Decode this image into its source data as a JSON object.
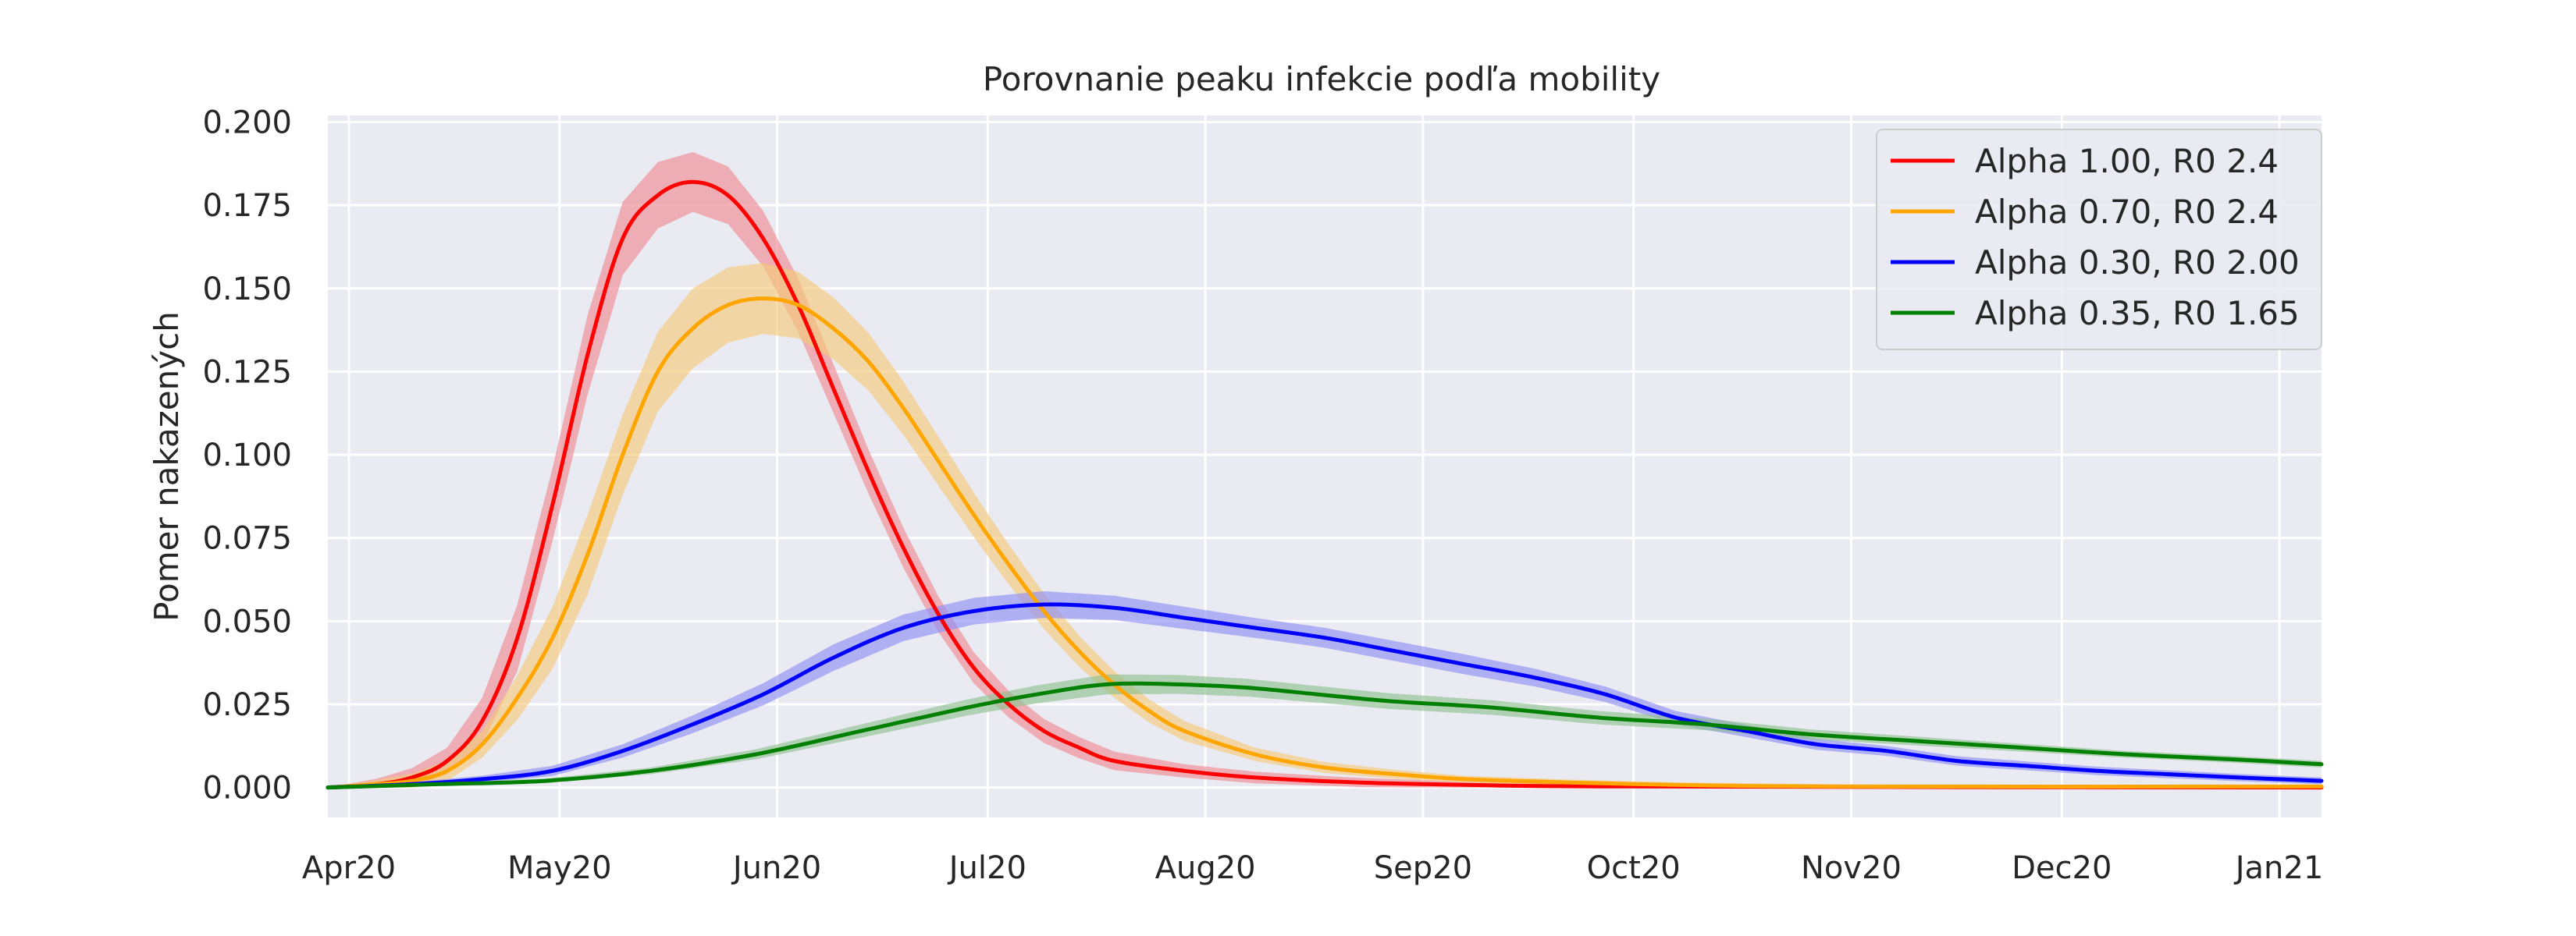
{
  "chart_data": {
    "type": "line",
    "title": "Porovnanie peaku infekcie podľa mobility",
    "xlabel": "",
    "ylabel": "Pomer nakazených",
    "x_type": "date",
    "xlim": [
      "2020-03-29",
      "2021-01-07"
    ],
    "ylim": [
      -0.009,
      0.202
    ],
    "yticks": [
      0.0,
      0.025,
      0.05,
      0.075,
      0.1,
      0.125,
      0.15,
      0.175,
      0.2
    ],
    "ytick_labels": [
      "0.000",
      "0.025",
      "0.050",
      "0.075",
      "0.100",
      "0.125",
      "0.150",
      "0.175",
      "0.200"
    ],
    "xticks": [
      "2020-04-01",
      "2020-05-01",
      "2020-06-01",
      "2020-07-01",
      "2020-08-01",
      "2020-09-01",
      "2020-10-01",
      "2020-11-01",
      "2020-12-01",
      "2021-01-01"
    ],
    "xtick_labels": [
      "Apr20",
      "May20",
      "Jun20",
      "Jul20",
      "Aug20",
      "Sep20",
      "Oct20",
      "Nov20",
      "Dec20",
      "Jan21"
    ],
    "grid": true,
    "legend_position": "top-right",
    "series": [
      {
        "name": "Alpha 1.00, R0 2.4",
        "color": "#ff0000",
        "band_color": "#f08a93",
        "points": [
          [
            "2020-03-29",
            0.0
          ],
          [
            "2020-04-05",
            0.001
          ],
          [
            "2020-04-10",
            0.003
          ],
          [
            "2020-04-15",
            0.008
          ],
          [
            "2020-04-20",
            0.02
          ],
          [
            "2020-04-25",
            0.045
          ],
          [
            "2020-04-30",
            0.085
          ],
          [
            "2020-05-05",
            0.13
          ],
          [
            "2020-05-10",
            0.165
          ],
          [
            "2020-05-15",
            0.178
          ],
          [
            "2020-05-20",
            0.182
          ],
          [
            "2020-05-25",
            0.178
          ],
          [
            "2020-05-30",
            0.165
          ],
          [
            "2020-06-04",
            0.145
          ],
          [
            "2020-06-09",
            0.12
          ],
          [
            "2020-06-14",
            0.095
          ],
          [
            "2020-06-19",
            0.072
          ],
          [
            "2020-06-24",
            0.052
          ],
          [
            "2020-06-29",
            0.036
          ],
          [
            "2020-07-04",
            0.025
          ],
          [
            "2020-07-09",
            0.017
          ],
          [
            "2020-07-14",
            0.012
          ],
          [
            "2020-07-19",
            0.008
          ],
          [
            "2020-07-29",
            0.005
          ],
          [
            "2020-08-08",
            0.003
          ],
          [
            "2020-08-23",
            0.0015
          ],
          [
            "2020-09-07",
            0.0008
          ],
          [
            "2020-10-01",
            0.0003
          ],
          [
            "2021-01-07",
            0.0
          ]
        ],
        "band_width": [
          [
            "2020-03-29",
            0.0
          ],
          [
            "2020-04-15",
            0.004
          ],
          [
            "2020-04-25",
            0.01
          ],
          [
            "2020-05-05",
            0.012
          ],
          [
            "2020-05-20",
            0.009
          ],
          [
            "2020-06-04",
            0.008
          ],
          [
            "2020-06-19",
            0.006
          ],
          [
            "2020-07-04",
            0.004
          ],
          [
            "2020-07-29",
            0.002
          ],
          [
            "2020-09-07",
            0.001
          ],
          [
            "2021-01-07",
            0.0
          ]
        ]
      },
      {
        "name": "Alpha 0.70, R0 2.4",
        "color": "#ffa500",
        "band_color": "#f5c97a",
        "points": [
          [
            "2020-03-29",
            0.0
          ],
          [
            "2020-04-05",
            0.001
          ],
          [
            "2020-04-10",
            0.002
          ],
          [
            "2020-04-15",
            0.005
          ],
          [
            "2020-04-20",
            0.013
          ],
          [
            "2020-04-25",
            0.027
          ],
          [
            "2020-04-30",
            0.045
          ],
          [
            "2020-05-05",
            0.07
          ],
          [
            "2020-05-10",
            0.1
          ],
          [
            "2020-05-15",
            0.125
          ],
          [
            "2020-05-20",
            0.138
          ],
          [
            "2020-05-25",
            0.145
          ],
          [
            "2020-05-30",
            0.147
          ],
          [
            "2020-06-04",
            0.145
          ],
          [
            "2020-06-09",
            0.138
          ],
          [
            "2020-06-14",
            0.128
          ],
          [
            "2020-06-19",
            0.114
          ],
          [
            "2020-06-24",
            0.098
          ],
          [
            "2020-06-29",
            0.082
          ],
          [
            "2020-07-04",
            0.067
          ],
          [
            "2020-07-09",
            0.053
          ],
          [
            "2020-07-14",
            0.041
          ],
          [
            "2020-07-19",
            0.031
          ],
          [
            "2020-07-24",
            0.023
          ],
          [
            "2020-07-29",
            0.017
          ],
          [
            "2020-08-08",
            0.01
          ],
          [
            "2020-08-18",
            0.006
          ],
          [
            "2020-08-28",
            0.004
          ],
          [
            "2020-09-07",
            0.0025
          ],
          [
            "2020-09-22",
            0.0015
          ],
          [
            "2020-10-07",
            0.0008
          ],
          [
            "2020-11-01",
            0.0003
          ],
          [
            "2021-01-07",
            0.0003
          ]
        ],
        "band_width": [
          [
            "2020-03-29",
            0.0
          ],
          [
            "2020-04-20",
            0.004
          ],
          [
            "2020-05-05",
            0.012
          ],
          [
            "2020-05-20",
            0.012
          ],
          [
            "2020-06-04",
            0.01
          ],
          [
            "2020-06-19",
            0.008
          ],
          [
            "2020-07-04",
            0.006
          ],
          [
            "2020-07-19",
            0.004
          ],
          [
            "2020-08-08",
            0.002
          ],
          [
            "2020-09-07",
            0.001
          ],
          [
            "2021-01-07",
            0.0
          ]
        ]
      },
      {
        "name": "Alpha 0.30, R0 2.00",
        "color": "#0000ff",
        "band_color": "#8f8ff5",
        "points": [
          [
            "2020-03-29",
            0.0
          ],
          [
            "2020-04-10",
            0.001
          ],
          [
            "2020-04-20",
            0.0025
          ],
          [
            "2020-04-30",
            0.005
          ],
          [
            "2020-05-10",
            0.011
          ],
          [
            "2020-05-20",
            0.019
          ],
          [
            "2020-05-30",
            0.028
          ],
          [
            "2020-06-09",
            0.039
          ],
          [
            "2020-06-19",
            0.048
          ],
          [
            "2020-06-29",
            0.053
          ],
          [
            "2020-07-09",
            0.055
          ],
          [
            "2020-07-19",
            0.054
          ],
          [
            "2020-07-29",
            0.051
          ],
          [
            "2020-08-08",
            0.048
          ],
          [
            "2020-08-18",
            0.045
          ],
          [
            "2020-08-28",
            0.041
          ],
          [
            "2020-09-07",
            0.037
          ],
          [
            "2020-09-17",
            0.033
          ],
          [
            "2020-09-27",
            0.028
          ],
          [
            "2020-10-07",
            0.021
          ],
          [
            "2020-10-17",
            0.017
          ],
          [
            "2020-10-27",
            0.013
          ],
          [
            "2020-11-06",
            0.011
          ],
          [
            "2020-11-16",
            0.008
          ],
          [
            "2020-11-26",
            0.0065
          ],
          [
            "2020-12-06",
            0.005
          ],
          [
            "2020-12-16",
            0.004
          ],
          [
            "2020-12-26",
            0.003
          ],
          [
            "2021-01-07",
            0.002
          ]
        ],
        "band_width": [
          [
            "2020-03-29",
            0.0
          ],
          [
            "2020-05-10",
            0.002
          ],
          [
            "2020-06-09",
            0.004
          ],
          [
            "2020-07-09",
            0.004
          ],
          [
            "2020-08-08",
            0.003
          ],
          [
            "2020-09-07",
            0.003
          ],
          [
            "2020-10-07",
            0.002
          ],
          [
            "2020-11-06",
            0.0015
          ],
          [
            "2021-01-07",
            0.001
          ]
        ]
      },
      {
        "name": "Alpha 0.35, R0 1.65",
        "color": "#008000",
        "band_color": "#8fc28f",
        "points": [
          [
            "2020-03-29",
            0.0
          ],
          [
            "2020-04-14",
            0.001
          ],
          [
            "2020-04-29",
            0.002
          ],
          [
            "2020-05-14",
            0.005
          ],
          [
            "2020-05-29",
            0.01
          ],
          [
            "2020-06-13",
            0.017
          ],
          [
            "2020-06-28",
            0.024
          ],
          [
            "2020-07-08",
            0.028
          ],
          [
            "2020-07-18",
            0.031
          ],
          [
            "2020-07-28",
            0.031
          ],
          [
            "2020-08-07",
            0.03
          ],
          [
            "2020-08-17",
            0.028
          ],
          [
            "2020-08-27",
            0.026
          ],
          [
            "2020-09-11",
            0.024
          ],
          [
            "2020-09-26",
            0.021
          ],
          [
            "2020-10-11",
            0.019
          ],
          [
            "2020-10-26",
            0.016
          ],
          [
            "2020-11-10",
            0.014
          ],
          [
            "2020-11-25",
            0.012
          ],
          [
            "2020-12-10",
            0.01
          ],
          [
            "2020-12-25",
            0.0085
          ],
          [
            "2021-01-07",
            0.007
          ]
        ],
        "band_width": [
          [
            "2020-03-29",
            0.0
          ],
          [
            "2020-05-14",
            0.001
          ],
          [
            "2020-06-13",
            0.002
          ],
          [
            "2020-07-18",
            0.003
          ],
          [
            "2020-08-17",
            0.0025
          ],
          [
            "2020-09-26",
            0.002
          ],
          [
            "2020-10-26",
            0.0015
          ],
          [
            "2020-12-10",
            0.001
          ],
          [
            "2021-01-07",
            0.001
          ]
        ]
      }
    ]
  }
}
